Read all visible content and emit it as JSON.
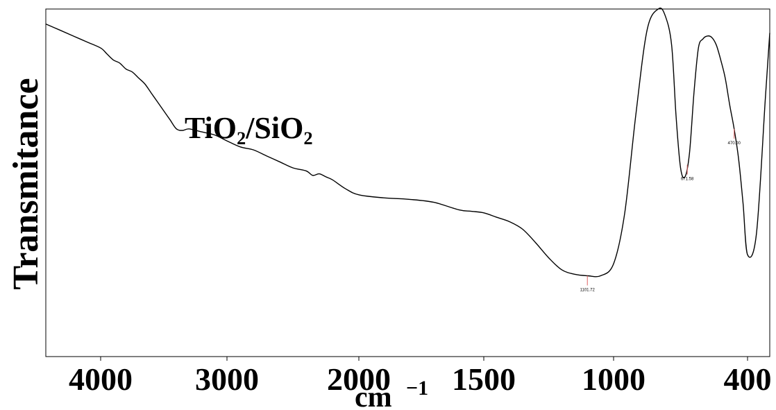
{
  "chart_data": {
    "type": "line",
    "title": "",
    "xlabel": "cm",
    "xlabel_superscript": "−1",
    "ylabel": "Transmitance",
    "x_reversed": true,
    "x_ticks": [
      {
        "value": 4000,
        "label": "4000"
      },
      {
        "value": 3000,
        "label": "3000"
      },
      {
        "value": 2000,
        "label": "2000"
      },
      {
        "value": 1500,
        "label": "1500"
      },
      {
        "value": 1000,
        "label": "1000"
      },
      {
        "value": 400,
        "label": "400"
      }
    ],
    "x_points": [
      4200,
      4150,
      4100,
      4050,
      4000,
      3950,
      3900,
      3850,
      3800,
      3750,
      3700,
      3650,
      3600,
      3550,
      3500,
      3450,
      3400,
      3350,
      3300,
      3200,
      3100,
      3000,
      2900,
      2800,
      2700,
      2600,
      2500,
      2400,
      2350,
      2300,
      2250,
      2200,
      2100,
      2000,
      1900,
      1800,
      1700,
      1600,
      1550,
      1500,
      1450,
      1400,
      1350,
      1300,
      1250,
      1200,
      1150,
      1100,
      1050,
      1000,
      950,
      900,
      850,
      800,
      770,
      740,
      720,
      700,
      680,
      660,
      640,
      620,
      600,
      580,
      560,
      540,
      520,
      500,
      480,
      460,
      440,
      420,
      400,
      380,
      360,
      350
    ],
    "transmittance_values": [
      95,
      93,
      91,
      89,
      87,
      85,
      83,
      82,
      80,
      79,
      77,
      75,
      72,
      69,
      66,
      63,
      60,
      59.5,
      60,
      59,
      58,
      56,
      54,
      53,
      51,
      49,
      47,
      46,
      44.5,
      45,
      44,
      43,
      40,
      38,
      37,
      36.5,
      35.5,
      33,
      32.5,
      32,
      30.5,
      29,
      26.5,
      22,
      17,
      13,
      11.5,
      11,
      11,
      15,
      32,
      65,
      93,
      100,
      98,
      88,
      64,
      47,
      44,
      52,
      72,
      87,
      90,
      91,
      90.5,
      88,
      83,
      77,
      68,
      60,
      50,
      35,
      18,
      25,
      70,
      92
    ],
    "peak_labels": [
      {
        "x": 1101,
        "label": "1101.72"
      },
      {
        "x": 670,
        "label": "671.58"
      },
      {
        "x": 460,
        "label": "470.00"
      }
    ],
    "annotations": [
      "TiO₂/SiO₂"
    ],
    "ylim": [
      0,
      100
    ],
    "grid": false,
    "line_color": "#000000",
    "peak_marker_color": "#e06060"
  }
}
